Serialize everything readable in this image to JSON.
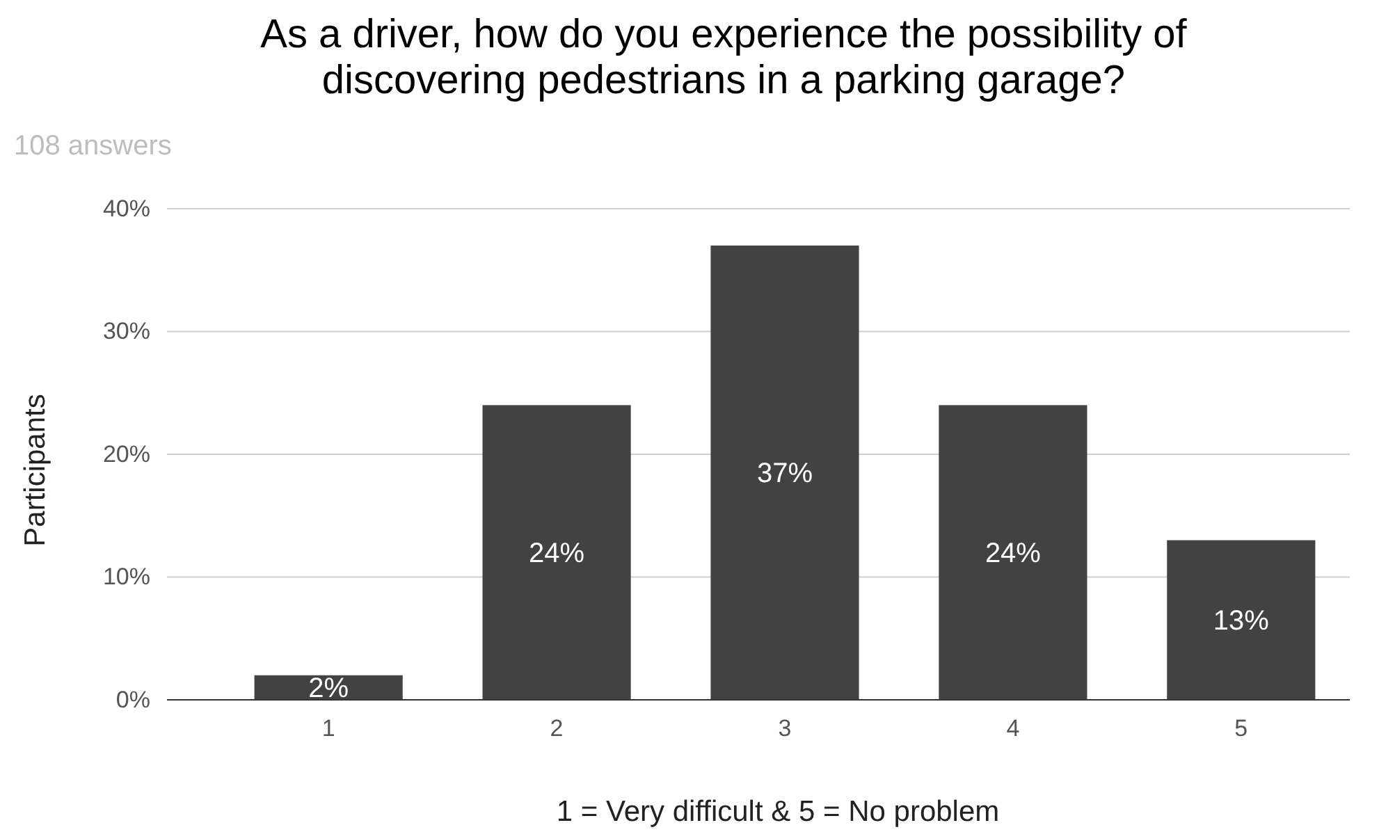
{
  "chart_data": {
    "type": "bar",
    "title": "As a driver, how do you experience the possibility of\ndiscovering pedestrians in a parking garage?",
    "subtitle": "108 answers",
    "xlabel": "1 = Very difficult & 5 = No problem",
    "ylabel": "Participants",
    "categories": [
      "1",
      "2",
      "3",
      "4",
      "5"
    ],
    "values": [
      2,
      24,
      37,
      24,
      13
    ],
    "value_labels": [
      "2%",
      "24%",
      "37%",
      "24%",
      "13%"
    ],
    "color": "#424242",
    "ylim": [
      0,
      40
    ],
    "yticks": [
      {
        "value": 0,
        "label": "0%"
      },
      {
        "value": 10,
        "label": "10%"
      },
      {
        "value": 20,
        "label": "20%"
      },
      {
        "value": 30,
        "label": "30%"
      },
      {
        "value": 40,
        "label": "40%"
      }
    ],
    "grid": "y"
  }
}
